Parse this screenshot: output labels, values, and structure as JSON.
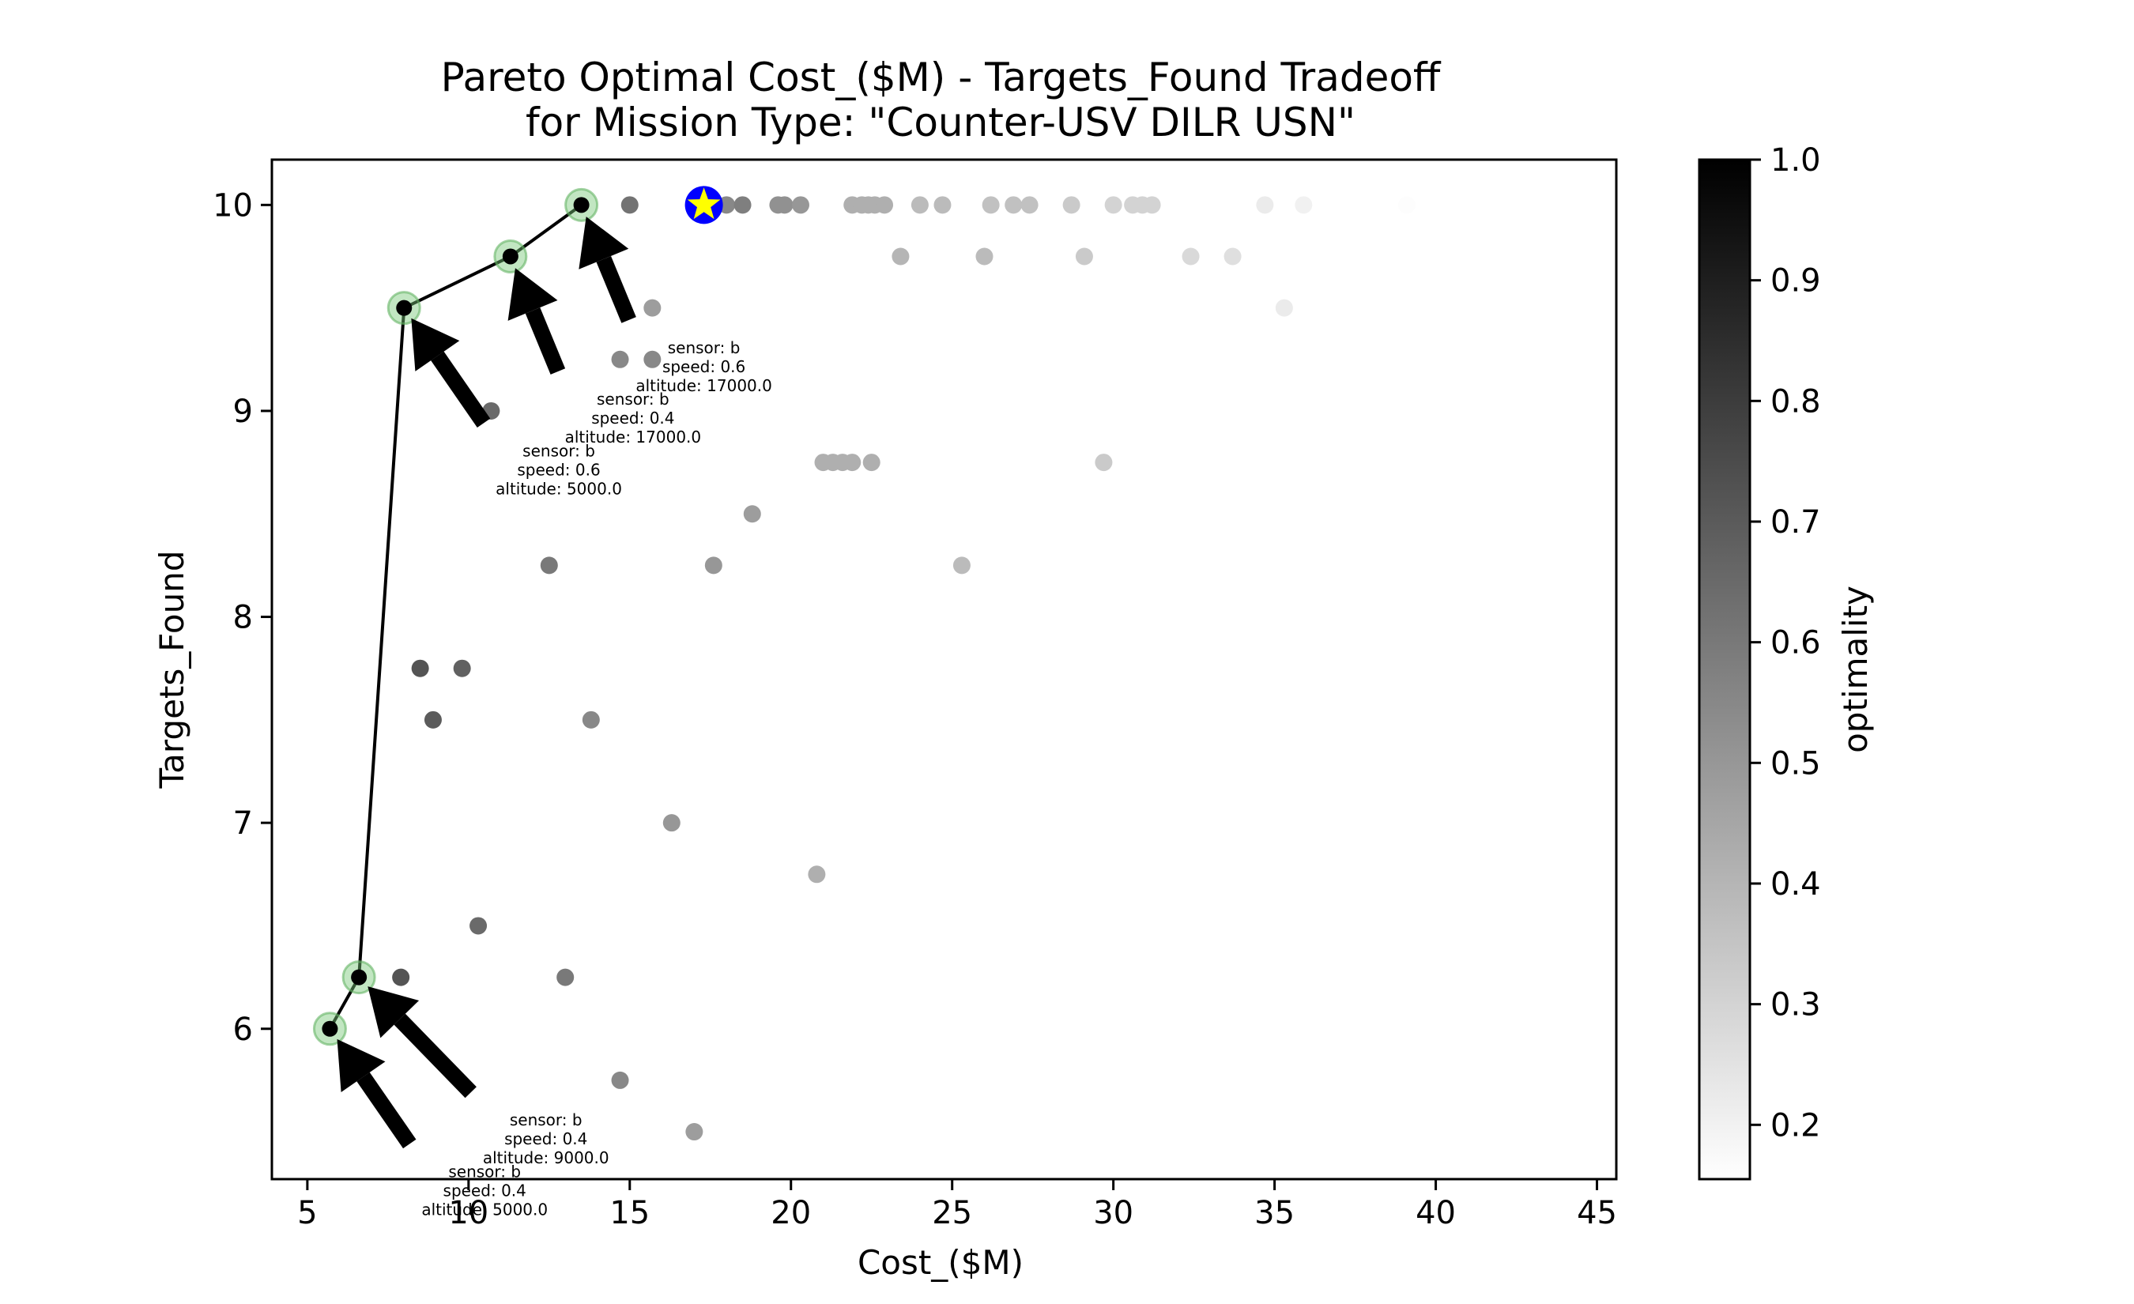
{
  "chart_data": {
    "type": "scatter",
    "title": "Pareto Optimal Cost_($M) - Targets_Found Tradeoff",
    "subtitle": "for Mission Type: \"Counter-USV DILR USN\"",
    "xlabel": "Cost_($M)",
    "ylabel": "Targets_Found",
    "xlim": [
      3.9,
      45.6
    ],
    "ylim": [
      5.27,
      10.22
    ],
    "xticks": [
      5,
      10,
      15,
      20,
      25,
      30,
      35,
      40,
      45
    ],
    "yticks": [
      6,
      7,
      8,
      9,
      10
    ],
    "grid": false,
    "colorbar": {
      "label": "optimality",
      "range": [
        0.155,
        1.0
      ],
      "ticks": [
        1.0,
        0.9,
        0.8,
        0.7,
        0.6,
        0.5,
        0.4,
        0.3,
        0.2
      ],
      "colors": {
        "low": "#ffffff",
        "high": "#000000"
      }
    },
    "points": [
      {
        "x": 15.0,
        "y": 10.0,
        "o": 0.62
      },
      {
        "x": 18.0,
        "y": 10.0,
        "o": 0.55
      },
      {
        "x": 18.5,
        "y": 10.0,
        "o": 0.58
      },
      {
        "x": 19.6,
        "y": 10.0,
        "o": 0.52
      },
      {
        "x": 19.8,
        "y": 10.0,
        "o": 0.52
      },
      {
        "x": 20.3,
        "y": 10.0,
        "o": 0.5
      },
      {
        "x": 21.9,
        "y": 10.0,
        "o": 0.42
      },
      {
        "x": 22.2,
        "y": 10.0,
        "o": 0.42
      },
      {
        "x": 22.4,
        "y": 10.0,
        "o": 0.42
      },
      {
        "x": 22.6,
        "y": 10.0,
        "o": 0.42
      },
      {
        "x": 22.9,
        "y": 10.0,
        "o": 0.42
      },
      {
        "x": 24.0,
        "y": 10.0,
        "o": 0.38
      },
      {
        "x": 24.7,
        "y": 10.0,
        "o": 0.38
      },
      {
        "x": 26.2,
        "y": 10.0,
        "o": 0.36
      },
      {
        "x": 26.9,
        "y": 10.0,
        "o": 0.36
      },
      {
        "x": 27.4,
        "y": 10.0,
        "o": 0.36
      },
      {
        "x": 28.7,
        "y": 10.0,
        "o": 0.33
      },
      {
        "x": 30.0,
        "y": 10.0,
        "o": 0.3
      },
      {
        "x": 30.6,
        "y": 10.0,
        "o": 0.3
      },
      {
        "x": 30.9,
        "y": 10.0,
        "o": 0.3
      },
      {
        "x": 31.2,
        "y": 10.0,
        "o": 0.3
      },
      {
        "x": 34.7,
        "y": 10.0,
        "o": 0.22
      },
      {
        "x": 35.9,
        "y": 10.0,
        "o": 0.2
      },
      {
        "x": 39.1,
        "y": 10.0,
        "o": 0.16
      },
      {
        "x": 23.4,
        "y": 9.75,
        "o": 0.4
      },
      {
        "x": 26.0,
        "y": 9.75,
        "o": 0.38
      },
      {
        "x": 29.1,
        "y": 9.75,
        "o": 0.33
      },
      {
        "x": 32.4,
        "y": 9.75,
        "o": 0.28
      },
      {
        "x": 33.7,
        "y": 9.75,
        "o": 0.26
      },
      {
        "x": 15.7,
        "y": 9.5,
        "o": 0.48
      },
      {
        "x": 35.3,
        "y": 9.5,
        "o": 0.22
      },
      {
        "x": 14.7,
        "y": 9.25,
        "o": 0.55
      },
      {
        "x": 15.7,
        "y": 9.25,
        "o": 0.55
      },
      {
        "x": 10.7,
        "y": 9.0,
        "o": 0.65
      },
      {
        "x": 21.0,
        "y": 8.75,
        "o": 0.42
      },
      {
        "x": 21.3,
        "y": 8.75,
        "o": 0.42
      },
      {
        "x": 21.6,
        "y": 8.75,
        "o": 0.42
      },
      {
        "x": 21.9,
        "y": 8.75,
        "o": 0.42
      },
      {
        "x": 22.5,
        "y": 8.75,
        "o": 0.42
      },
      {
        "x": 29.7,
        "y": 8.75,
        "o": 0.33
      },
      {
        "x": 18.8,
        "y": 8.5,
        "o": 0.48
      },
      {
        "x": 12.5,
        "y": 8.25,
        "o": 0.6
      },
      {
        "x": 17.6,
        "y": 8.25,
        "o": 0.5
      },
      {
        "x": 25.3,
        "y": 8.25,
        "o": 0.38
      },
      {
        "x": 8.5,
        "y": 7.75,
        "o": 0.72
      },
      {
        "x": 9.8,
        "y": 7.75,
        "o": 0.68
      },
      {
        "x": 8.9,
        "y": 7.5,
        "o": 0.7
      },
      {
        "x": 13.8,
        "y": 7.5,
        "o": 0.55
      },
      {
        "x": 16.3,
        "y": 7.0,
        "o": 0.5
      },
      {
        "x": 20.8,
        "y": 6.75,
        "o": 0.42
      },
      {
        "x": 10.3,
        "y": 6.5,
        "o": 0.65
      },
      {
        "x": 7.9,
        "y": 6.25,
        "o": 0.72
      },
      {
        "x": 13.0,
        "y": 6.25,
        "o": 0.6
      },
      {
        "x": 14.7,
        "y": 5.75,
        "o": 0.55
      },
      {
        "x": 17.0,
        "y": 5.5,
        "o": 0.48
      }
    ],
    "pareto_front": [
      {
        "x": 5.7,
        "y": 6.0
      },
      {
        "x": 6.6,
        "y": 6.25
      },
      {
        "x": 8.0,
        "y": 9.5
      },
      {
        "x": 11.3,
        "y": 9.75
      },
      {
        "x": 13.5,
        "y": 10.0
      }
    ],
    "star": {
      "x": 17.3,
      "y": 10.0,
      "fill": "#ffff00",
      "stroke": "#0000ff"
    },
    "annotations": [
      {
        "lines": [
          "sensor: b",
          "speed: 0.6",
          "altitude: 17000.0"
        ],
        "x": 17.3,
        "y": 9.28,
        "ax": 13.5,
        "ay": 10.0
      },
      {
        "lines": [
          "sensor: b",
          "speed: 0.4",
          "altitude: 17000.0"
        ],
        "x": 15.1,
        "y": 9.03,
        "ax": 11.3,
        "ay": 9.75
      },
      {
        "lines": [
          "sensor: b",
          "speed: 0.6",
          "altitude: 5000.0"
        ],
        "x": 12.8,
        "y": 8.78,
        "ax": 8.0,
        "ay": 9.5
      },
      {
        "lines": [
          "sensor: b",
          "speed: 0.4",
          "altitude: 9000.0"
        ],
        "x": 12.4,
        "y": 5.53,
        "ax": 6.6,
        "ay": 6.25
      },
      {
        "lines": [
          "sensor: b",
          "speed: 0.4",
          "altitude: 5000.0"
        ],
        "x": 10.5,
        "y": 5.28,
        "ax": 5.7,
        "ay": 6.0
      }
    ]
  }
}
